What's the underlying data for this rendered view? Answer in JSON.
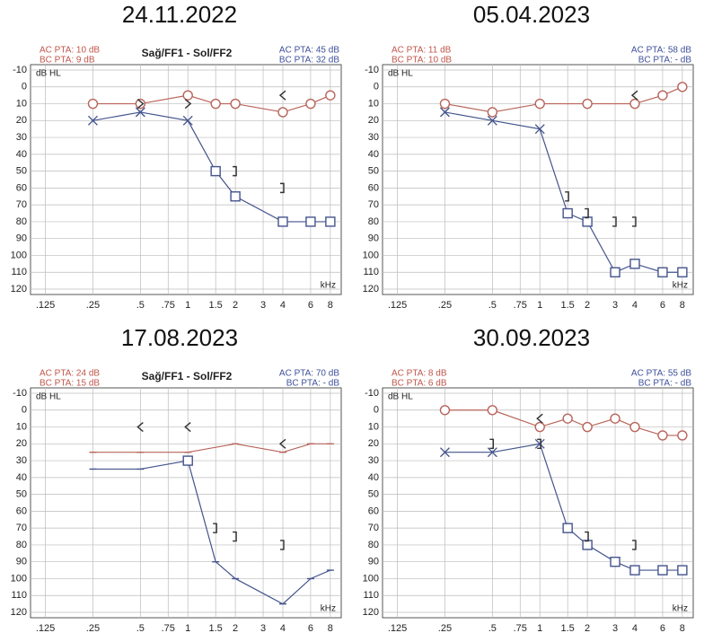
{
  "chart_data": [
    {
      "type": "line",
      "title": "24.11.2022",
      "subtitle": "Sağ/FF1 - Sol/FF2",
      "left_labels": [
        "AC PTA: 10 dB",
        "BC PTA: 9 dB"
      ],
      "right_labels": [
        "AC PTA: 45 dB",
        "BC PTA: 32 dB"
      ],
      "ylabel": "dB HL",
      "xlabel": "kHz",
      "xscale": "log",
      "y_inverted": true,
      "grid": true,
      "xlim": [
        0.106,
        8.9
      ],
      "ylim": [
        -10,
        120
      ],
      "xticks": [
        {
          "value": 0.125,
          "label": ".125"
        },
        {
          "value": 0.25,
          "label": ".25"
        },
        {
          "value": 0.5,
          "label": ".5"
        },
        {
          "value": 0.75,
          "label": ".75"
        },
        1,
        1.5,
        2,
        3,
        4,
        6,
        8
      ],
      "yticks": [
        -10,
        0,
        10,
        20,
        30,
        40,
        50,
        60,
        70,
        80,
        90,
        100,
        110,
        120
      ],
      "series": [
        {
          "color": "#b8645a",
          "line": true,
          "markers": [
            "circle",
            "circle",
            "circle",
            "circle",
            "circle",
            "circle",
            "circle",
            "circle"
          ],
          "x": [
            0.25,
            0.5,
            1,
            1.5,
            2,
            4,
            6,
            8
          ],
          "values": [
            10,
            10,
            5,
            10,
            10,
            15,
            10,
            5
          ]
        },
        {
          "color": "#44548c",
          "line": true,
          "markers": [
            "x",
            "x",
            "x",
            "square",
            "square",
            "square",
            "square",
            "square"
          ],
          "x": [
            0.25,
            0.5,
            1,
            1.5,
            2,
            4,
            6,
            8
          ],
          "values": [
            20,
            15,
            20,
            50,
            65,
            80,
            80,
            80
          ]
        },
        {
          "color": "#333333",
          "line": false,
          "markers": [
            ">",
            ">",
            "<"
          ],
          "x": [
            0.5,
            1,
            4
          ],
          "values": [
            10,
            10,
            5
          ]
        },
        {
          "color": "#333333",
          "line": false,
          "markers": [
            "]",
            "]"
          ],
          "x": [
            2,
            4
          ],
          "values": [
            50,
            60
          ]
        }
      ]
    },
    {
      "type": "line",
      "title": "05.04.2023",
      "left_labels": [
        "AC PTA: 11 dB",
        "BC PTA: 10 dB"
      ],
      "right_labels": [
        "AC PTA: 58 dB",
        "BC PTA: - dB"
      ],
      "ylabel": "dB HL",
      "xlabel": "kHz",
      "xscale": "log",
      "y_inverted": true,
      "grid": true,
      "xlim": [
        0.106,
        8.9
      ],
      "ylim": [
        -10,
        120
      ],
      "xticks": [
        {
          "value": 0.125,
          "label": ".125"
        },
        {
          "value": 0.25,
          "label": ".25"
        },
        {
          "value": 0.5,
          "label": ".5"
        },
        {
          "value": 0.75,
          "label": ".75"
        },
        1,
        1.5,
        2,
        3,
        4,
        6,
        8
      ],
      "yticks": [
        -10,
        0,
        10,
        20,
        30,
        40,
        50,
        60,
        70,
        80,
        90,
        100,
        110,
        120
      ],
      "series": [
        {
          "color": "#b8645a",
          "line": true,
          "markers": [
            "circle",
            "circle",
            "circle",
            "circle",
            "circle",
            "circle",
            "circle"
          ],
          "x": [
            0.25,
            0.5,
            1,
            2,
            4,
            6,
            8
          ],
          "values": [
            10,
            15,
            10,
            10,
            10,
            5,
            0
          ]
        },
        {
          "color": "#44548c",
          "line": true,
          "markers": [
            "x",
            "x",
            "x",
            "square",
            "square",
            "square",
            "square",
            "square",
            "square"
          ],
          "x": [
            0.25,
            0.5,
            1,
            1.5,
            2,
            3,
            4,
            6,
            8
          ],
          "values": [
            15,
            20,
            25,
            75,
            80,
            110,
            105,
            110,
            110
          ]
        },
        {
          "color": "#333333",
          "line": false,
          "markers": [
            "<"
          ],
          "x": [
            4
          ],
          "values": [
            5
          ]
        },
        {
          "color": "#333333",
          "line": false,
          "markers": [
            "]",
            "]",
            "]",
            "]"
          ],
          "x": [
            1.5,
            2,
            3,
            4
          ],
          "values": [
            65,
            75,
            80,
            80
          ]
        }
      ]
    },
    {
      "type": "line",
      "title": "17.08.2023",
      "subtitle": "Sağ/FF1 - Sol/FF2",
      "left_labels": [
        "AC PTA: 24 dB",
        "BC PTA: 15 dB"
      ],
      "right_labels": [
        "AC PTA: 70 dB",
        "BC PTA: - dB"
      ],
      "ylabel": "dB HL",
      "xlabel": "kHz",
      "xscale": "log",
      "y_inverted": true,
      "grid": true,
      "xlim": [
        0.106,
        8.9
      ],
      "ylim": [
        -10,
        120
      ],
      "xticks": [
        {
          "value": 0.125,
          "label": ".125"
        },
        {
          "value": 0.25,
          "label": ".25"
        },
        {
          "value": 0.5,
          "label": ".5"
        },
        {
          "value": 0.75,
          "label": ".75"
        },
        1,
        1.5,
        2,
        3,
        4,
        6,
        8
      ],
      "yticks": [
        -10,
        0,
        10,
        20,
        30,
        40,
        50,
        60,
        70,
        80,
        90,
        100,
        110,
        120
      ],
      "series": [
        {
          "color": "#b8645a",
          "line": true,
          "markers": [
            "dash",
            "dash",
            "dash",
            "dash",
            "dash",
            "dash",
            "dash"
          ],
          "x": [
            0.25,
            0.5,
            1,
            2,
            4,
            6,
            8
          ],
          "values": [
            25,
            25,
            25,
            20,
            25,
            20,
            20
          ]
        },
        {
          "color": "#44548c",
          "line": true,
          "markers": [
            "dash",
            "dash",
            "square",
            "dash",
            "dash",
            "dash",
            "dash",
            "dash"
          ],
          "x": [
            0.25,
            0.5,
            1,
            1.5,
            2,
            4,
            6,
            8
          ],
          "values": [
            35,
            35,
            30,
            90,
            100,
            115,
            100,
            95
          ]
        },
        {
          "color": "#333333",
          "line": false,
          "markers": [
            "<",
            "<",
            "<"
          ],
          "x": [
            0.5,
            1,
            4
          ],
          "values": [
            10,
            10,
            20
          ]
        },
        {
          "color": "#333333",
          "line": false,
          "markers": [
            "]",
            "]",
            "]"
          ],
          "x": [
            1.5,
            2,
            4
          ],
          "values": [
            70,
            75,
            80
          ]
        }
      ]
    },
    {
      "type": "line",
      "title": "30.09.2023",
      "left_labels": [
        "AC PTA: 8 dB",
        "BC PTA: 6 dB"
      ],
      "right_labels": [
        "AC PTA: 55 dB",
        "BC PTA: - dB"
      ],
      "ylabel": "dB HL",
      "xlabel": "kHz",
      "xscale": "log",
      "y_inverted": true,
      "grid": true,
      "xlim": [
        0.106,
        8.9
      ],
      "ylim": [
        -10,
        120
      ],
      "xticks": [
        {
          "value": 0.125,
          "label": ".125"
        },
        {
          "value": 0.25,
          "label": ".25"
        },
        {
          "value": 0.5,
          "label": ".5"
        },
        {
          "value": 0.75,
          "label": ".75"
        },
        1,
        1.5,
        2,
        3,
        4,
        6,
        8
      ],
      "yticks": [
        -10,
        0,
        10,
        20,
        30,
        40,
        50,
        60,
        70,
        80,
        90,
        100,
        110,
        120
      ],
      "series": [
        {
          "color": "#b8645a",
          "line": true,
          "markers": [
            "circle",
            "circle",
            "circle",
            "circle",
            "circle",
            "circle",
            "circle",
            "circle",
            "circle"
          ],
          "x": [
            0.25,
            0.5,
            1,
            1.5,
            2,
            3,
            4,
            6,
            8
          ],
          "values": [
            0,
            0,
            10,
            5,
            10,
            5,
            10,
            15,
            15
          ]
        },
        {
          "color": "#44548c",
          "line": true,
          "markers": [
            "x",
            "x",
            "x",
            "square",
            "square",
            "square",
            "square",
            "square",
            "square"
          ],
          "x": [
            0.25,
            0.5,
            1,
            1.5,
            2,
            3,
            4,
            6,
            8
          ],
          "values": [
            25,
            25,
            20,
            70,
            80,
            90,
            95,
            95,
            95
          ]
        },
        {
          "color": "#333333",
          "line": false,
          "markers": [
            "<"
          ],
          "x": [
            1
          ],
          "values": [
            5
          ]
        },
        {
          "color": "#333333",
          "line": false,
          "markers": [
            "]",
            "]",
            "]",
            "]"
          ],
          "x": [
            0.5,
            1,
            2,
            4
          ],
          "values": [
            20,
            20,
            75,
            80
          ]
        }
      ]
    }
  ]
}
